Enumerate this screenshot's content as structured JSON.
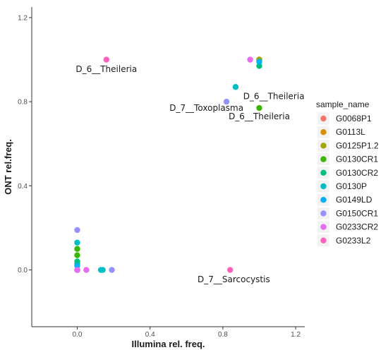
{
  "chart_data": {
    "type": "scatter",
    "xlabel": "Illumina rel. freq.",
    "ylabel": "ONT rel.freq.",
    "xlim": [
      -0.25,
      1.25
    ],
    "ylim": [
      -0.27,
      1.25
    ],
    "x_ticks": [
      {
        "value": 0.0,
        "label": "0.0"
      },
      {
        "value": 0.4,
        "label": "0.4"
      },
      {
        "value": 0.8,
        "label": "0.8"
      },
      {
        "value": 1.2,
        "label": "1.2"
      }
    ],
    "y_ticks": [
      {
        "value": 0.0,
        "label": "0.0"
      },
      {
        "value": 0.4,
        "label": "0.4"
      },
      {
        "value": 0.8,
        "label": "0.8"
      },
      {
        "value": 1.2,
        "label": "1.2"
      }
    ],
    "legend": {
      "title": "sample_name",
      "placement": "right"
    },
    "series": [
      {
        "name": "G0068P1",
        "color": "#F8766D",
        "points": [
          [
            1.0,
            1.0
          ],
          [
            0.0,
            0.0
          ]
        ]
      },
      {
        "name": "G0113L",
        "color": "#D89000",
        "points": [
          [
            1.0,
            1.0
          ],
          [
            0.0,
            0.0
          ]
        ]
      },
      {
        "name": "G0125P1.2",
        "color": "#A3A500",
        "points": [
          [
            1.0,
            1.0
          ],
          [
            0.0,
            0.0
          ]
        ]
      },
      {
        "name": "G0130CR1",
        "color": "#39B600",
        "points": [
          [
            1.0,
            0.77
          ],
          [
            0.0,
            0.1
          ],
          [
            0.0,
            0.07
          ],
          [
            0.0,
            0.03
          ]
        ]
      },
      {
        "name": "G0130CR2",
        "color": "#00BF7D",
        "points": [
          [
            1.0,
            0.97
          ],
          [
            0.0,
            0.04
          ],
          [
            0.0,
            0.0
          ]
        ]
      },
      {
        "name": "G0130P",
        "color": "#00BFC4",
        "points": [
          [
            0.87,
            0.87
          ],
          [
            0.0,
            0.13
          ],
          [
            0.13,
            0.0
          ],
          [
            0.14,
            0.0
          ]
        ]
      },
      {
        "name": "G0149LD",
        "color": "#00B0F6",
        "points": [
          [
            1.0,
            0.99
          ],
          [
            0.0,
            0.02
          ]
        ]
      },
      {
        "name": "G0150CR1",
        "color": "#9590FF",
        "points": [
          [
            0.82,
            0.8
          ],
          [
            0.0,
            0.19
          ],
          [
            0.0,
            0.0
          ],
          [
            0.19,
            0.0
          ]
        ]
      },
      {
        "name": "G0233CR2",
        "color": "#E76BF3",
        "points": [
          [
            0.95,
            1.0
          ],
          [
            0.05,
            0.0
          ],
          [
            0.0,
            0.0
          ]
        ]
      },
      {
        "name": "G0233L2",
        "color": "#FF62BC",
        "points": [
          [
            0.16,
            1.0
          ],
          [
            0.84,
            0.0
          ]
        ]
      }
    ],
    "annotations": [
      {
        "text": "D_6__Theileria",
        "x": 0.16,
        "y": 0.955,
        "anchor": "middle"
      },
      {
        "text": "D_6__Theileria",
        "x": 1.08,
        "y": 0.825,
        "anchor": "middle"
      },
      {
        "text": "D_7__Toxoplasma",
        "x": 0.71,
        "y": 0.77,
        "anchor": "middle"
      },
      {
        "text": "D_6__Theileria",
        "x": 1.0,
        "y": 0.73,
        "anchor": "middle"
      },
      {
        "text": "D_7__Sarcocystis",
        "x": 0.86,
        "y": -0.045,
        "anchor": "middle"
      }
    ]
  }
}
